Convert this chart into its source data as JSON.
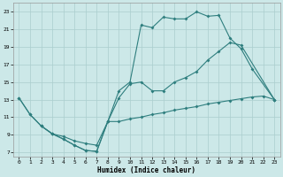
{
  "xlabel": "Humidex (Indice chaleur)",
  "bg_color": "#cce8e8",
  "line_color": "#2e7e7e",
  "grid_color": "#aacece",
  "xlim": [
    -0.5,
    23.5
  ],
  "ylim": [
    6.5,
    24.0
  ],
  "xticks": [
    0,
    1,
    2,
    3,
    4,
    5,
    6,
    7,
    8,
    9,
    10,
    11,
    12,
    13,
    14,
    15,
    16,
    17,
    18,
    19,
    20,
    21,
    22,
    23
  ],
  "yticks": [
    7,
    9,
    11,
    13,
    15,
    17,
    19,
    21,
    23
  ],
  "line1_x": [
    0,
    1,
    2,
    3,
    4,
    5,
    6,
    7,
    8,
    9,
    10,
    11,
    12,
    13,
    14,
    15,
    16,
    17,
    18,
    19,
    20,
    21,
    23
  ],
  "line1_y": [
    13.2,
    11.3,
    10.0,
    9.1,
    8.5,
    7.8,
    7.2,
    7.1,
    10.5,
    14.0,
    15.0,
    21.5,
    21.2,
    22.4,
    22.2,
    22.2,
    23.0,
    22.5,
    22.6,
    20.0,
    18.8,
    16.5,
    13.0
  ],
  "line2_x": [
    0,
    1,
    2,
    3,
    4,
    5,
    6,
    7,
    8,
    9,
    10,
    11,
    12,
    13,
    14,
    15,
    16,
    17,
    18,
    19,
    20,
    23
  ],
  "line2_y": [
    13.2,
    11.3,
    10.0,
    9.1,
    8.5,
    7.8,
    7.2,
    7.1,
    10.5,
    13.2,
    14.8,
    15.0,
    14.0,
    14.0,
    15.0,
    15.5,
    16.2,
    17.5,
    18.5,
    19.5,
    19.2,
    13.0
  ],
  "line3_x": [
    2,
    3,
    4,
    5,
    6,
    7,
    8,
    9,
    10,
    11,
    12,
    13,
    14,
    15,
    16,
    17,
    18,
    19,
    20,
    21,
    22,
    23
  ],
  "line3_y": [
    10.0,
    9.1,
    8.8,
    8.3,
    8.0,
    7.8,
    10.5,
    10.5,
    10.8,
    11.0,
    11.3,
    11.5,
    11.8,
    12.0,
    12.2,
    12.5,
    12.7,
    12.9,
    13.1,
    13.3,
    13.4,
    13.0
  ],
  "markersize": 2.0,
  "linewidth": 0.8
}
